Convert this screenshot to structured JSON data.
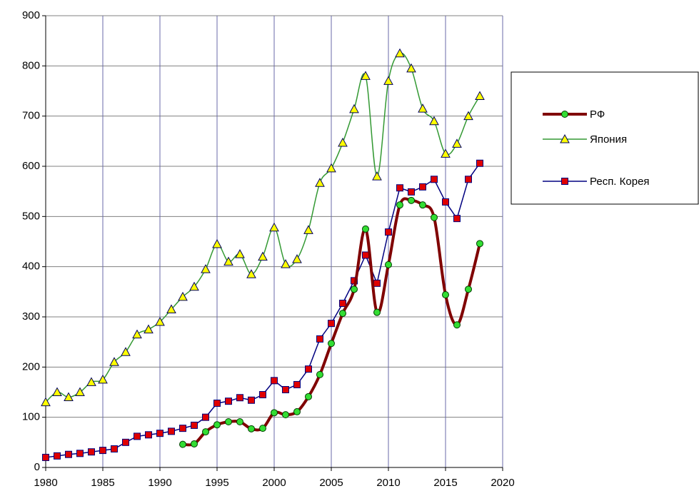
{
  "chart_data": {
    "type": "line",
    "x": [
      1980,
      1981,
      1982,
      1983,
      1984,
      1985,
      1986,
      1987,
      1988,
      1989,
      1990,
      1991,
      1992,
      1993,
      1994,
      1995,
      1996,
      1997,
      1998,
      1999,
      2000,
      2001,
      2002,
      2003,
      2004,
      2005,
      2006,
      2007,
      2008,
      2009,
      2010,
      2011,
      2012,
      2013,
      2014,
      2015,
      2016,
      2017,
      2018
    ],
    "series": [
      {
        "name": "РФ",
        "color": "#800000",
        "marker": "circle",
        "marker_color": "#33dd33",
        "smooth": true,
        "values": [
          null,
          null,
          null,
          null,
          null,
          null,
          null,
          null,
          null,
          null,
          null,
          null,
          46,
          47,
          71,
          85,
          91,
          91,
          77,
          78,
          109,
          105,
          111,
          141,
          185,
          247,
          307,
          355,
          475,
          309,
          404,
          523,
          532,
          523,
          498,
          344,
          284,
          355,
          446
        ]
      },
      {
        "name": "Япония",
        "color": "#339933",
        "marker": "triangle",
        "marker_color": "#ffff00",
        "smooth": true,
        "values": [
          130,
          150,
          140,
          150,
          170,
          175,
          210,
          230,
          265,
          275,
          290,
          315,
          340,
          360,
          395,
          445,
          410,
          425,
          385,
          420,
          478,
          405,
          415,
          473,
          567,
          596,
          647,
          714,
          780,
          580,
          770,
          825,
          795,
          715,
          690,
          625,
          645,
          700,
          740
        ]
      },
      {
        "name": "Респ. Корея",
        "color": "#000080",
        "marker": "square",
        "marker_color": "#e00000",
        "smooth": false,
        "values": [
          20,
          23,
          26,
          28,
          31,
          34,
          37,
          50,
          62,
          65,
          68,
          72,
          78,
          84,
          100,
          128,
          132,
          139,
          134,
          145,
          173,
          155,
          165,
          196,
          256,
          287,
          327,
          372,
          423,
          367,
          469,
          557,
          549,
          559,
          574,
          529,
          496,
          574,
          606
        ]
      }
    ],
    "xlim": [
      1980,
      2020
    ],
    "xticks": [
      1980,
      1985,
      1990,
      1995,
      2000,
      2005,
      2010,
      2015,
      2020
    ],
    "ylim": [
      0,
      900
    ],
    "yticks": [
      0,
      100,
      200,
      300,
      400,
      500,
      600,
      700,
      800,
      900
    ],
    "grid": true,
    "legend": "right"
  }
}
